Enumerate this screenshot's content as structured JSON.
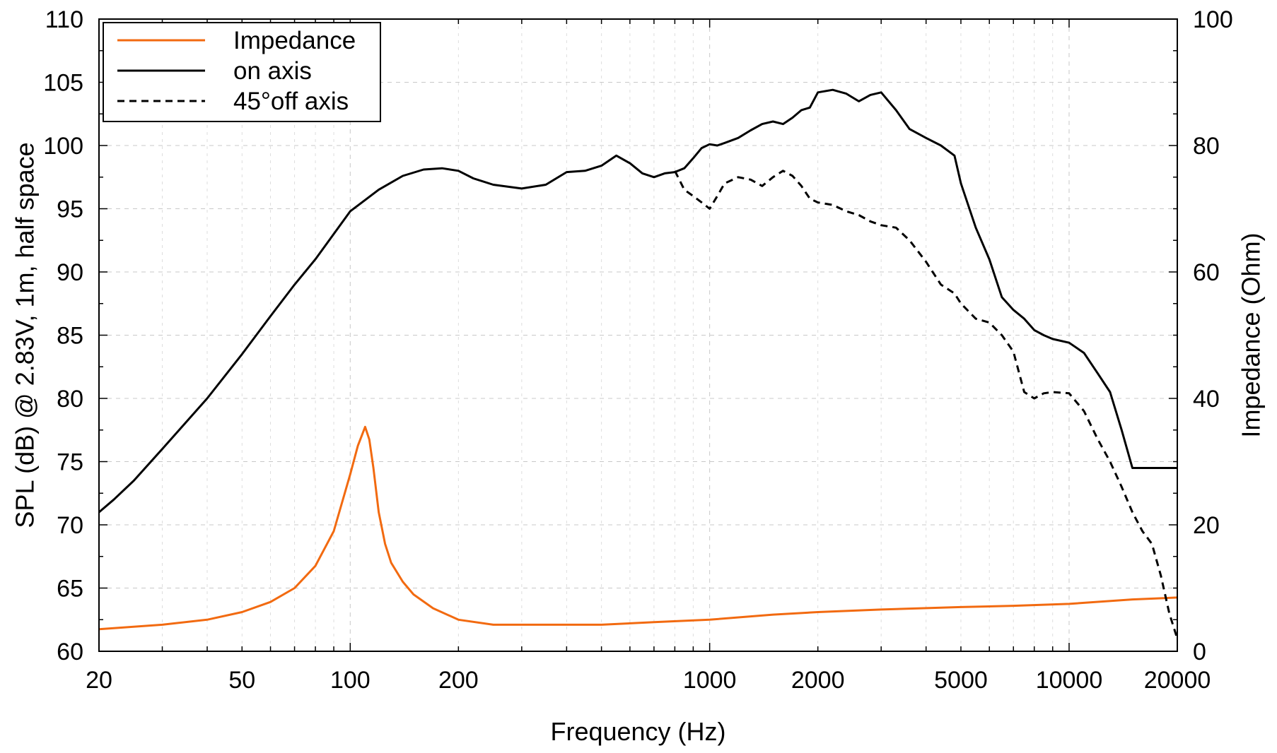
{
  "chart_data": {
    "type": "line",
    "xlabel": "Frequency (Hz)",
    "ylabel_left": "SPL (dB) @ 2.83V, 1m, half space",
    "ylabel_right": "Impedance (Ohm)",
    "x_scale": "log",
    "xlim": [
      20,
      20000
    ],
    "ylim_left": [
      60,
      110
    ],
    "ylim_right": [
      0,
      100
    ],
    "x_ticks": [
      20,
      50,
      100,
      200,
      1000,
      2000,
      5000,
      10000,
      20000
    ],
    "x_tick_labels": [
      "20",
      "50",
      "100",
      "200",
      "1000",
      "2000",
      "5000",
      "10000",
      "20000"
    ],
    "y_left_ticks": [
      60,
      65,
      70,
      75,
      80,
      85,
      90,
      95,
      100,
      105,
      110
    ],
    "y_left_tick_labels": [
      "60",
      "65",
      "70",
      "75",
      "80",
      "85",
      "90",
      "95",
      "100",
      "105",
      "110"
    ],
    "y_right_ticks": [
      0,
      20,
      40,
      60,
      80,
      100
    ],
    "y_right_tick_labels": [
      "0",
      "20",
      "40",
      "60",
      "80",
      "100"
    ],
    "grid": true,
    "legend_position": "top-left",
    "series": [
      {
        "name": "Impedance",
        "axis": "right",
        "color": "#f26a10",
        "style": "solid",
        "x": [
          20,
          30,
          40,
          50,
          60,
          70,
          80,
          90,
          100,
          105,
          110,
          113,
          116,
          120,
          125,
          130,
          140,
          150,
          170,
          200,
          250,
          300,
          400,
          500,
          700,
          1000,
          1500,
          2000,
          3000,
          5000,
          7000,
          10000,
          15000,
          20000
        ],
        "y": [
          3.5,
          4.2,
          5.0,
          6.2,
          7.8,
          10.0,
          13.5,
          19.0,
          28.0,
          32.5,
          35.5,
          33.5,
          29.0,
          22.0,
          17.0,
          14.0,
          11.0,
          9.0,
          6.8,
          5.0,
          4.2,
          4.2,
          4.2,
          4.2,
          4.6,
          5.0,
          5.8,
          6.2,
          6.6,
          7.0,
          7.2,
          7.5,
          8.2,
          8.5
        ]
      },
      {
        "name": "on axis",
        "axis": "left",
        "color": "#000000",
        "style": "solid",
        "x": [
          20,
          22,
          25,
          30,
          40,
          50,
          60,
          70,
          80,
          90,
          100,
          120,
          140,
          160,
          180,
          200,
          220,
          250,
          300,
          350,
          400,
          450,
          500,
          550,
          600,
          650,
          700,
          750,
          800,
          850,
          900,
          950,
          1000,
          1050,
          1100,
          1200,
          1300,
          1400,
          1500,
          1600,
          1700,
          1800,
          1900,
          2000,
          2200,
          2400,
          2600,
          2800,
          3000,
          3300,
          3600,
          4000,
          4400,
          4800,
          5000,
          5500,
          6000,
          6500,
          7000,
          7500,
          8000,
          8500,
          9000,
          10000,
          11000,
          12000,
          13000,
          14000,
          15000,
          16000,
          17000,
          18000,
          19000,
          20000
        ],
        "y": [
          71.0,
          72.0,
          73.5,
          76.0,
          80.0,
          83.5,
          86.5,
          89.0,
          91.0,
          93.0,
          94.8,
          96.5,
          97.6,
          98.1,
          98.2,
          98.0,
          97.4,
          96.9,
          96.6,
          96.9,
          97.9,
          98.0,
          98.4,
          99.2,
          98.6,
          97.8,
          97.5,
          97.8,
          97.9,
          98.2,
          99.0,
          99.8,
          100.1,
          100.0,
          100.2,
          100.6,
          101.2,
          101.7,
          101.9,
          101.7,
          102.2,
          102.8,
          103.0,
          104.2,
          104.4,
          104.1,
          103.5,
          104.0,
          104.2,
          102.8,
          101.3,
          100.6,
          100.0,
          99.2,
          97.0,
          93.5,
          91.0,
          88.0,
          87.0,
          86.3,
          85.4,
          85.0,
          84.7,
          84.4,
          83.6,
          82.0,
          80.5,
          77.5,
          74.5,
          74.5,
          74.5,
          74.5,
          74.5,
          74.5
        ]
      },
      {
        "name": "45°off axis",
        "axis": "left",
        "color": "#000000",
        "style": "dashed",
        "x": [
          800,
          850,
          900,
          950,
          1000,
          1050,
          1100,
          1200,
          1300,
          1400,
          1500,
          1600,
          1700,
          1800,
          1900,
          2000,
          2200,
          2400,
          2600,
          2800,
          3000,
          3300,
          3600,
          4000,
          4400,
          4800,
          5000,
          5500,
          6000,
          6500,
          7000,
          7500,
          8000,
          8500,
          9000,
          10000,
          11000,
          12000,
          13000,
          14000,
          15000,
          16000,
          17000,
          18000,
          19000,
          20000
        ],
        "y": [
          98.0,
          96.5,
          96.0,
          95.5,
          95.0,
          96.0,
          97.0,
          97.5,
          97.3,
          96.8,
          97.5,
          98.0,
          97.6,
          96.8,
          95.8,
          95.5,
          95.3,
          94.8,
          94.5,
          94.0,
          93.7,
          93.5,
          92.5,
          90.8,
          89.0,
          88.3,
          87.5,
          86.3,
          86.0,
          85.0,
          83.7,
          80.5,
          80.0,
          80.4,
          80.5,
          80.4,
          79.0,
          76.8,
          75.0,
          73.0,
          71.0,
          69.5,
          68.5,
          66.0,
          63.0,
          61.0
        ]
      }
    ]
  }
}
